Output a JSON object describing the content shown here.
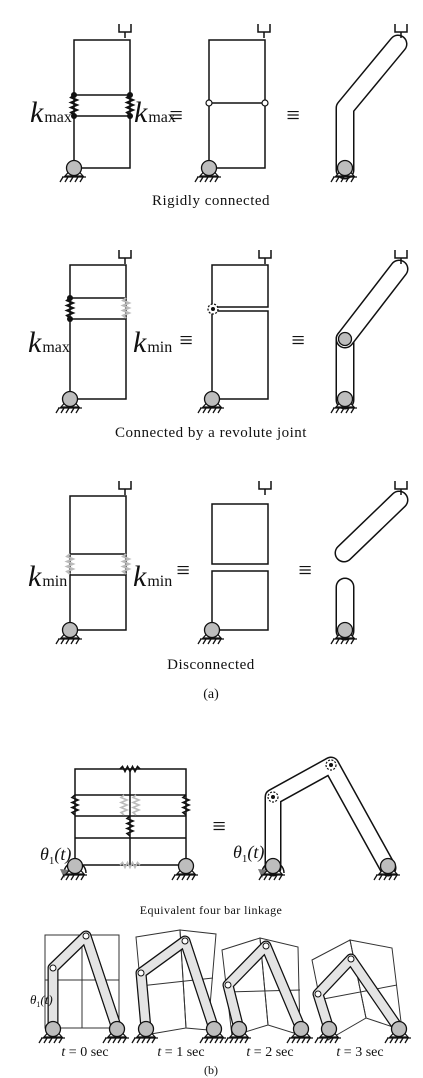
{
  "panel_a": {
    "rows": [
      {
        "caption": "Rigidly connected",
        "left_k": {
          "base": "k",
          "sub": "max"
        },
        "right_k": {
          "base": "k",
          "sub": "max"
        }
      },
      {
        "caption": "Connected by a revolute joint",
        "left_k": {
          "base": "k",
          "sub": "max"
        },
        "right_k": {
          "base": "k",
          "sub": "min"
        }
      },
      {
        "caption": "Disconnected",
        "left_k": {
          "base": "k",
          "sub": "min"
        },
        "right_k": {
          "base": "k",
          "sub": "min"
        }
      }
    ],
    "label": "(a)",
    "equiv_symbol": "≡"
  },
  "panel_b": {
    "caption": "Equivalent four bar linkage",
    "theta_label": {
      "symbol": "θ",
      "sub": "1",
      "arg": "(t)"
    },
    "time_labels": [
      {
        "var": "t",
        "rest": " = 0 sec"
      },
      {
        "var": "t",
        "rest": " = 1 sec"
      },
      {
        "var": "t",
        "rest": " = 2 sec"
      },
      {
        "var": "t",
        "rest": " = 3 sec"
      }
    ],
    "label": "(b)"
  },
  "colors": {
    "line": "#111111",
    "spring_rigid": "#111111",
    "spring_soft": "#bbbbbb",
    "pin": "#bdbdbd",
    "link_fill": "#e4e4e4"
  }
}
